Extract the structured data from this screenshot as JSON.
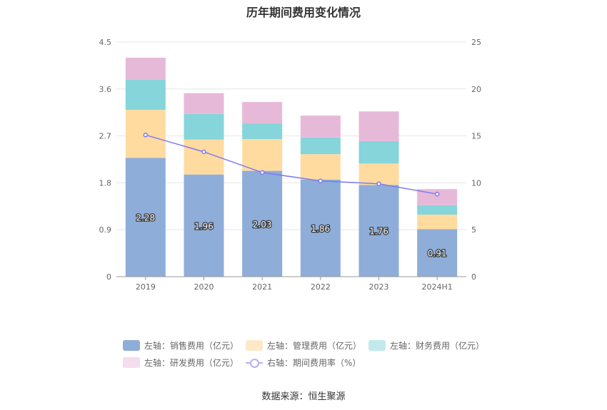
{
  "title": "历年期间费用变化情况",
  "source_text": "数据来源：恒生聚源",
  "legend": {
    "sales": "左轴：销售费用（亿元）",
    "admin": "左轴：管理费用（亿元）",
    "finance": "左轴：财务费用（亿元）",
    "rd": "左轴：研发费用（亿元）",
    "rate": "右轴：期间费用率（%）"
  },
  "colors": {
    "sales": "#8eadd9",
    "admin": "#ffdba0",
    "finance": "#85d5da",
    "rd": "#e7b9d8",
    "rate": "#7d7af0",
    "legend_admin": "#fde9c8",
    "legend_finance": "#c2eaec",
    "legend_rd": "#f4ddec"
  },
  "chart_data": {
    "type": "bar",
    "stacked": true,
    "title": "历年期间费用变化情况",
    "categories": [
      "2019",
      "2020",
      "2021",
      "2022",
      "2023",
      "2024H1"
    ],
    "left_axis": {
      "min": 0,
      "max": 4.5,
      "ticks": [
        "0",
        "0.9",
        "1.8",
        "2.7",
        "3.6",
        "4.5"
      ]
    },
    "right_axis": {
      "min": 0,
      "max": 25,
      "ticks": [
        "0",
        "5",
        "10",
        "15",
        "20",
        "25"
      ]
    },
    "series": [
      {
        "key": "sales",
        "name": "左轴：销售费用（亿元）",
        "axis": "left",
        "values": [
          2.28,
          1.96,
          2.03,
          1.86,
          1.76,
          0.91
        ],
        "labels": [
          "2.28",
          "1.96",
          "2.03",
          "1.86",
          "1.76",
          "0.91"
        ]
      },
      {
        "key": "admin",
        "name": "左轴：管理费用（亿元）",
        "axis": "left",
        "values": [
          0.92,
          0.67,
          0.61,
          0.49,
          0.41,
          0.28
        ]
      },
      {
        "key": "finance",
        "name": "左轴：财务费用（亿元）",
        "axis": "left",
        "values": [
          0.58,
          0.49,
          0.3,
          0.32,
          0.43,
          0.18
        ]
      },
      {
        "key": "rd",
        "name": "左轴：研发费用（亿元）",
        "axis": "left",
        "values": [
          0.42,
          0.4,
          0.41,
          0.42,
          0.57,
          0.31
        ]
      },
      {
        "key": "rate",
        "name": "右轴：期间费用率（%）",
        "axis": "right",
        "type": "line",
        "values": [
          15.1,
          13.3,
          11.1,
          10.2,
          9.9,
          8.8
        ]
      }
    ]
  }
}
